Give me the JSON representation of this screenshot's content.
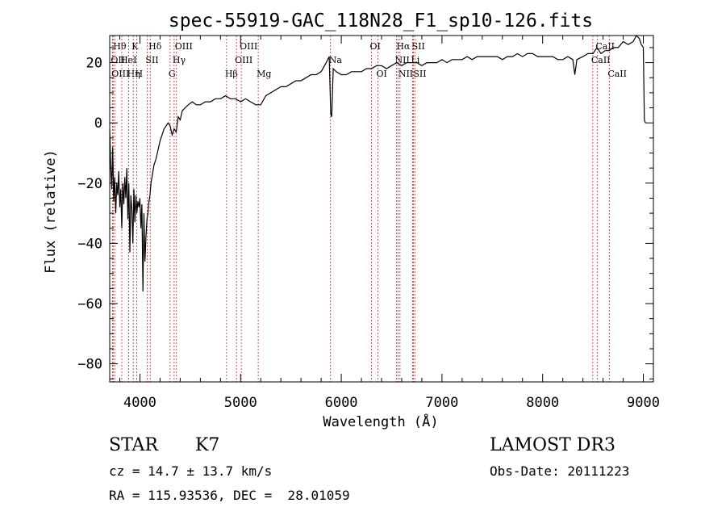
{
  "chart_data": {
    "type": "line",
    "title": "spec-55919-GAC_118N28_F1_sp10-126.fits",
    "xlabel": "Wavelength (Å)",
    "ylabel": "Flux (relative)",
    "xlim": [
      3700,
      9100
    ],
    "ylim": [
      -86,
      29
    ],
    "xticks": [
      4000,
      5000,
      6000,
      7000,
      8000,
      9000
    ],
    "yticks": [
      -80,
      -60,
      -40,
      -20,
      0,
      20
    ],
    "grid": false,
    "series": [
      {
        "values": [
          [
            3700,
            -2
          ],
          [
            3710,
            -14
          ],
          [
            3720,
            -22
          ],
          [
            3730,
            -8
          ],
          [
            3740,
            -26
          ],
          [
            3750,
            -18
          ],
          [
            3760,
            -30
          ],
          [
            3770,
            -20
          ],
          [
            3780,
            -24
          ],
          [
            3790,
            -16
          ],
          [
            3800,
            -28
          ],
          [
            3810,
            -22
          ],
          [
            3820,
            -35
          ],
          [
            3830,
            -20
          ],
          [
            3840,
            -27
          ],
          [
            3850,
            -18
          ],
          [
            3860,
            -25
          ],
          [
            3870,
            -15
          ],
          [
            3880,
            -32
          ],
          [
            3890,
            -20
          ],
          [
            3900,
            -43
          ],
          [
            3910,
            -24
          ],
          [
            3920,
            -29
          ],
          [
            3930,
            -40
          ],
          [
            3940,
            -22
          ],
          [
            3950,
            -33
          ],
          [
            3960,
            -24
          ],
          [
            3970,
            -30
          ],
          [
            3980,
            -26
          ],
          [
            3990,
            -28
          ],
          [
            4000,
            -25
          ],
          [
            4010,
            -35
          ],
          [
            4020,
            -27
          ],
          [
            4030,
            -56
          ],
          [
            4040,
            -30
          ],
          [
            4050,
            -46
          ],
          [
            4060,
            -38
          ],
          [
            4070,
            -32
          ],
          [
            4080,
            -30
          ],
          [
            4090,
            -26
          ],
          [
            4100,
            -24
          ],
          [
            4110,
            -20
          ],
          [
            4120,
            -18
          ],
          [
            4140,
            -14
          ],
          [
            4160,
            -12
          ],
          [
            4180,
            -9
          ],
          [
            4200,
            -6
          ],
          [
            4220,
            -4
          ],
          [
            4240,
            -2
          ],
          [
            4260,
            -1
          ],
          [
            4280,
            0
          ],
          [
            4300,
            -1
          ],
          [
            4320,
            -4
          ],
          [
            4340,
            -2
          ],
          [
            4360,
            -3
          ],
          [
            4380,
            2
          ],
          [
            4400,
            1
          ],
          [
            4420,
            4
          ],
          [
            4450,
            5
          ],
          [
            4480,
            6
          ],
          [
            4520,
            7
          ],
          [
            4560,
            6
          ],
          [
            4600,
            6
          ],
          [
            4650,
            7
          ],
          [
            4700,
            7
          ],
          [
            4750,
            8
          ],
          [
            4800,
            8
          ],
          [
            4850,
            9
          ],
          [
            4900,
            8
          ],
          [
            4950,
            8
          ],
          [
            5000,
            7
          ],
          [
            5050,
            8
          ],
          [
            5100,
            7
          ],
          [
            5150,
            6
          ],
          [
            5200,
            6
          ],
          [
            5250,
            9
          ],
          [
            5300,
            10
          ],
          [
            5350,
            11
          ],
          [
            5400,
            12
          ],
          [
            5450,
            12
          ],
          [
            5500,
            13
          ],
          [
            5550,
            14
          ],
          [
            5600,
            14
          ],
          [
            5650,
            15
          ],
          [
            5700,
            16
          ],
          [
            5750,
            16
          ],
          [
            5800,
            17
          ],
          [
            5850,
            20
          ],
          [
            5880,
            22
          ],
          [
            5895,
            3
          ],
          [
            5905,
            2
          ],
          [
            5920,
            18
          ],
          [
            5950,
            17
          ],
          [
            6000,
            16
          ],
          [
            6050,
            16
          ],
          [
            6100,
            17
          ],
          [
            6150,
            17
          ],
          [
            6200,
            17
          ],
          [
            6250,
            18
          ],
          [
            6300,
            18
          ],
          [
            6350,
            19
          ],
          [
            6400,
            19
          ],
          [
            6450,
            18
          ],
          [
            6500,
            19
          ],
          [
            6550,
            20
          ],
          [
            6600,
            19
          ],
          [
            6650,
            20
          ],
          [
            6700,
            20
          ],
          [
            6750,
            20
          ],
          [
            6800,
            19
          ],
          [
            6850,
            20
          ],
          [
            6900,
            20
          ],
          [
            6950,
            20
          ],
          [
            7000,
            21
          ],
          [
            7050,
            20
          ],
          [
            7100,
            21
          ],
          [
            7150,
            21
          ],
          [
            7200,
            21
          ],
          [
            7250,
            22
          ],
          [
            7300,
            21
          ],
          [
            7350,
            22
          ],
          [
            7400,
            22
          ],
          [
            7450,
            22
          ],
          [
            7500,
            22
          ],
          [
            7550,
            22
          ],
          [
            7600,
            21
          ],
          [
            7650,
            22
          ],
          [
            7700,
            22
          ],
          [
            7750,
            23
          ],
          [
            7800,
            22
          ],
          [
            7850,
            23
          ],
          [
            7900,
            23
          ],
          [
            7950,
            22
          ],
          [
            8000,
            22
          ],
          [
            8050,
            22
          ],
          [
            8100,
            22
          ],
          [
            8150,
            21
          ],
          [
            8200,
            21
          ],
          [
            8250,
            22
          ],
          [
            8300,
            21
          ],
          [
            8320,
            16
          ],
          [
            8340,
            21
          ],
          [
            8400,
            22
          ],
          [
            8450,
            23
          ],
          [
            8500,
            23
          ],
          [
            8540,
            25
          ],
          [
            8580,
            23
          ],
          [
            8620,
            24
          ],
          [
            8660,
            24
          ],
          [
            8700,
            25
          ],
          [
            8750,
            25
          ],
          [
            8800,
            27
          ],
          [
            8850,
            26
          ],
          [
            8900,
            27
          ],
          [
            8930,
            29
          ],
          [
            8960,
            28
          ],
          [
            8980,
            26
          ],
          [
            9000,
            25
          ],
          [
            9010,
            1
          ],
          [
            9020,
            0
          ]
        ]
      }
    ],
    "lines": [
      {
        "wl": 3750,
        "label": "Hθ",
        "row": 0
      },
      {
        "wl": 3727,
        "label": "OII",
        "row": 1
      },
      {
        "wl": 3734,
        "label": "OIII",
        "row": 2
      },
      {
        "wl": 3889,
        "label": "Hη",
        "row": 2
      },
      {
        "wl": 3820,
        "label": "HeI",
        "row": 1
      },
      {
        "wl": 3934,
        "label": "K",
        "row": 0
      },
      {
        "wl": 3968,
        "label": "H",
        "row": 2
      },
      {
        "wl": 4072,
        "label": "SII",
        "row": 1
      },
      {
        "wl": 4102,
        "label": "Hδ",
        "row": 0
      },
      {
        "wl": 4300,
        "label": "G",
        "row": 2
      },
      {
        "wl": 4340,
        "label": "Hγ",
        "row": 1
      },
      {
        "wl": 4363,
        "label": "OIII",
        "row": 0
      },
      {
        "wl": 4861,
        "label": "Hβ",
        "row": 2
      },
      {
        "wl": 4959,
        "label": "OIII",
        "row": 1
      },
      {
        "wl": 5007,
        "label": "OIII",
        "row": 0
      },
      {
        "wl": 5175,
        "label": "Mg",
        "row": 2
      },
      {
        "wl": 5893,
        "label": "Na",
        "row": 1
      },
      {
        "wl": 6300,
        "label": "OI",
        "row": 0
      },
      {
        "wl": 6364,
        "label": "OI",
        "row": 2
      },
      {
        "wl": 6548,
        "label": "NII",
        "row": 1
      },
      {
        "wl": 6563,
        "label": "Hα",
        "row": 0
      },
      {
        "wl": 6583,
        "label": "NII",
        "row": 2
      },
      {
        "wl": 6717,
        "label": "SII",
        "row": 0
      },
      {
        "wl": 6708,
        "label": "Li",
        "row": 1
      },
      {
        "wl": 6731,
        "label": "SII",
        "row": 2
      },
      {
        "wl": 8498,
        "label": "CaII",
        "row": 1
      },
      {
        "wl": 8542,
        "label": "CaII",
        "row": 0
      },
      {
        "wl": 8662,
        "label": "CaII",
        "row": 2
      }
    ]
  },
  "info": {
    "class": "STAR",
    "subclass": "K7",
    "survey": "LAMOST DR3",
    "cz": "cz = 14.7 ± 13.7 km/s",
    "obsdate": "Obs-Date: 20111223",
    "radec": "RA = 115.93536, DEC =  28.01059"
  }
}
